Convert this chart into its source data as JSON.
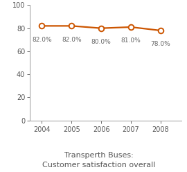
{
  "years": [
    2004,
    2005,
    2006,
    2007,
    2008
  ],
  "values": [
    82.0,
    82.0,
    80.0,
    81.0,
    78.0
  ],
  "labels": [
    "82.0%",
    "82.0%",
    "80.0%",
    "81.0%",
    "78.0%"
  ],
  "line_color": "#CC5500",
  "marker_face": "#FFFFFF",
  "marker_edge": "#CC5500",
  "title_line1": "Transperth Buses:",
  "title_line2": "Customer satisfaction overall",
  "ylim": [
    0,
    100
  ],
  "yticks": [
    0,
    20,
    40,
    60,
    80,
    100
  ],
  "xlim_min": 2003.6,
  "xlim_max": 2008.7,
  "background_color": "#FFFFFF",
  "label_fontsize": 6.5,
  "title_fontsize": 8.0,
  "axis_fontsize": 7.0,
  "spine_color": "#999999",
  "text_color": "#666666"
}
